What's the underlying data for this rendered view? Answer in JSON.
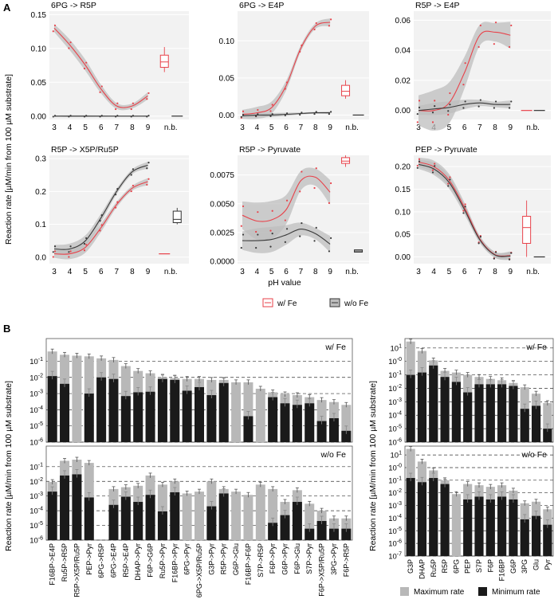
{
  "figure": {
    "panel_a_label": "A",
    "panel_b_label": "B",
    "ylabel_a": "Reaction rate [µM/min from 100 µM substrate]",
    "xlabel_a": "pH value",
    "ylabel_b": "Reaction rate [µM/min from 100 µM substrate]",
    "legend_a": [
      {
        "label": "w/ Fe",
        "color": "#e8424a"
      },
      {
        "label": "w/o Fe",
        "color": "#555555"
      }
    ],
    "legend_b": [
      {
        "label": "Maximum rate",
        "color": "#b8b8b8"
      },
      {
        "label": "Minimum rate",
        "color": "#1a1a1a"
      }
    ],
    "colors": {
      "fe": "#e8424a",
      "nofe": "#3a3a3a",
      "ribbon": "#bdbdbd",
      "max": "#b8b8b8",
      "min": "#1a1a1a",
      "panel_bg": "#f2f2f2",
      "strip": "#d9d9d9"
    }
  },
  "chart_data": [
    {
      "type": "line",
      "title": "6PG -> R5P",
      "xlabel": "pH value",
      "x": [
        3,
        4,
        5,
        6,
        7,
        8,
        9
      ],
      "ylim": [
        -0.005,
        0.155
      ],
      "yticks": [
        0.0,
        0.05,
        0.1,
        0.15
      ],
      "ytick_labels": [
        "0.00",
        "0.05",
        "0.10",
        "0.15"
      ],
      "nb_label": "n.b.",
      "series": [
        {
          "name": "w/ Fe",
          "values": [
            0.13,
            0.105,
            0.075,
            0.04,
            0.015,
            0.015,
            0.03
          ],
          "band": 0.006
        },
        {
          "name": "w/o Fe",
          "values": [
            0.0,
            0.0,
            0.0,
            0.0,
            0.0,
            0.0,
            0.0
          ],
          "band": 0.001
        }
      ],
      "nb_box": [
        {
          "series": "w/ Fe",
          "min": 0.065,
          "q1": 0.072,
          "median": 0.08,
          "q3": 0.09,
          "max": 0.102
        },
        {
          "series": "w/o Fe",
          "min": 0.0,
          "q1": 0.0,
          "median": 0.0,
          "q3": 0.0,
          "max": 0.0
        }
      ]
    },
    {
      "type": "line",
      "title": "6PG -> E4P",
      "xlabel": "pH value",
      "x": [
        3,
        4,
        5,
        6,
        7,
        8,
        9
      ],
      "ylim": [
        -0.006,
        0.14
      ],
      "yticks": [
        0.0,
        0.05,
        0.1
      ],
      "ytick_labels": [
        "0.00",
        "0.05",
        "0.10"
      ],
      "nb_label": "n.b.",
      "series": [
        {
          "name": "w/ Fe",
          "values": [
            0.001,
            0.003,
            0.01,
            0.04,
            0.09,
            0.12,
            0.125
          ],
          "band": 0.006
        },
        {
          "name": "w/o Fe",
          "values": [
            -0.001,
            0.0,
            0.0,
            0.001,
            0.002,
            0.003,
            0.003
          ],
          "band": 0.002
        }
      ],
      "nb_box": [
        {
          "series": "w/ Fe",
          "min": 0.022,
          "q1": 0.026,
          "median": 0.032,
          "q3": 0.04,
          "max": 0.047
        },
        {
          "series": "w/o Fe",
          "min": 0.0,
          "q1": 0.0,
          "median": 0.0,
          "q3": 0.0,
          "max": 0.0
        }
      ]
    },
    {
      "type": "line",
      "title": "R5P -> E4P",
      "xlabel": "pH value",
      "x": [
        3,
        4,
        5,
        6,
        7,
        8,
        9
      ],
      "ylim": [
        -0.006,
        0.066
      ],
      "yticks": [
        0.0,
        0.02,
        0.04,
        0.06
      ],
      "ytick_labels": [
        "0.00",
        "0.02",
        "0.04",
        "0.06"
      ],
      "nb_label": "n.b.",
      "series": [
        {
          "name": "w/ Fe",
          "values": [
            0.0,
            0.0,
            0.005,
            0.025,
            0.05,
            0.052,
            0.05
          ],
          "band": 0.01
        },
        {
          "name": "w/o Fe",
          "values": [
            0.0,
            0.001,
            0.002,
            0.004,
            0.005,
            0.004,
            0.004
          ],
          "band": 0.003
        }
      ],
      "nb_box": [
        {
          "series": "w/ Fe",
          "min": 0.0,
          "q1": 0.0,
          "median": 0.0,
          "q3": 0.0,
          "max": 0.0
        },
        {
          "series": "w/o Fe",
          "min": 0.0,
          "q1": 0.0,
          "median": 0.0,
          "q3": 0.0,
          "max": 0.0
        }
      ]
    },
    {
      "type": "line",
      "title": "R5P -> X5P/Ru5P",
      "xlabel": "pH value",
      "x": [
        3,
        4,
        5,
        6,
        7,
        8,
        9
      ],
      "ylim": [
        -0.02,
        0.31
      ],
      "yticks": [
        0.0,
        0.1,
        0.2,
        0.3
      ],
      "ytick_labels": [
        "0.0",
        "0.1",
        "0.2",
        "0.3"
      ],
      "nb_label": "n.b.",
      "series": [
        {
          "name": "w/ Fe",
          "values": [
            0.01,
            0.01,
            0.03,
            0.09,
            0.16,
            0.21,
            0.23
          ],
          "band": 0.012
        },
        {
          "name": "w/o Fe",
          "values": [
            0.025,
            0.025,
            0.05,
            0.12,
            0.2,
            0.26,
            0.28
          ],
          "band": 0.012
        }
      ],
      "nb_box": [
        {
          "series": "w/ Fe",
          "min": 0.01,
          "q1": 0.01,
          "median": 0.01,
          "q3": 0.01,
          "max": 0.01
        },
        {
          "series": "w/o Fe",
          "min": 0.1,
          "q1": 0.105,
          "median": 0.115,
          "q3": 0.14,
          "max": 0.15
        }
      ]
    },
    {
      "type": "line",
      "title": "R5P -> Pyruvate",
      "xlabel": "pH value",
      "x": [
        3,
        4,
        5,
        6,
        7,
        8,
        9
      ],
      "ylim": [
        -0.0002,
        0.0092
      ],
      "yticks": [
        0.0,
        0.0025,
        0.005,
        0.0075
      ],
      "ytick_labels": [
        "0.0000",
        "0.0025",
        "0.0050",
        "0.0075"
      ],
      "nb_label": "n.b.",
      "series": [
        {
          "name": "w/ Fe",
          "values": [
            0.004,
            0.0035,
            0.0036,
            0.0045,
            0.007,
            0.0073,
            0.006
          ],
          "band": 0.0012
        },
        {
          "name": "w/o Fe",
          "values": [
            0.0018,
            0.0018,
            0.0019,
            0.0023,
            0.0028,
            0.0024,
            0.0015
          ],
          "band": 0.0008
        }
      ],
      "nb_box": [
        {
          "series": "w/ Fe",
          "min": 0.0082,
          "q1": 0.0085,
          "median": 0.0087,
          "q3": 0.009,
          "max": 0.0092
        },
        {
          "series": "w/o Fe",
          "min": 0.0008,
          "q1": 0.0008,
          "median": 0.0009,
          "q3": 0.001,
          "max": 0.001
        }
      ]
    },
    {
      "type": "line",
      "title": "PEP -> Pyruvate",
      "xlabel": "pH value",
      "x": [
        3,
        4,
        5,
        6,
        7,
        8,
        9
      ],
      "ylim": [
        -0.015,
        0.225
      ],
      "yticks": [
        0.0,
        0.05,
        0.1,
        0.15,
        0.2
      ],
      "ytick_labels": [
        "0.00",
        "0.05",
        "0.10",
        "0.15",
        "0.20"
      ],
      "nb_label": "n.b.",
      "series": [
        {
          "name": "w/ Fe",
          "values": [
            0.21,
            0.2,
            0.17,
            0.11,
            0.04,
            0.005,
            0.003
          ],
          "band": 0.01
        },
        {
          "name": "w/o Fe",
          "values": [
            0.205,
            0.195,
            0.165,
            0.105,
            0.038,
            0.004,
            0.002
          ],
          "band": 0.01
        }
      ],
      "nb_box": [
        {
          "series": "w/ Fe",
          "min": 0.0,
          "q1": 0.03,
          "median": 0.065,
          "q3": 0.09,
          "max": 0.125
        },
        {
          "series": "w/o Fe",
          "min": 0.0,
          "q1": 0.0,
          "median": 0.0,
          "q3": 0.0,
          "max": 0.0
        }
      ]
    },
    {
      "type": "bar",
      "title": "w/ Fe",
      "scale": "log",
      "ylim_exp": [
        -6,
        0.4
      ],
      "yticks_exp": [
        -6,
        -5,
        -4,
        -3,
        -2,
        -1
      ],
      "ytick_labels": [
        "10^-6",
        "10^-5",
        "10^-4",
        "10^-3",
        "10^-2",
        "10^-1"
      ],
      "categories": [
        "F16BP->E4P",
        "Ru5P->R5P",
        "R5P->X5P/Ru5P",
        "PEP->Pyr",
        "6PG->R5P",
        "6PG->E4P",
        "R5P->E4P",
        "DHAP->Pyr",
        "F6P->G6P",
        "Ru5P->Pyr",
        "F16BP->Pyr",
        "6PG->Pyr",
        "6PG->X5P/Ru5P",
        "G3P->Pyr",
        "R5P->Pyr",
        "G6P->Glu",
        "F16BP->F6P",
        "S7P->R5P",
        "F6P->Pyr",
        "G6P->Pyr",
        "F6P->Glu",
        "S7P->Pyr",
        "F6P->X5P/Ru5P",
        "3PG->Pyr",
        "F6P->R5P"
      ],
      "series": [
        {
          "name": "Maximum rate",
          "values": [
            0.4,
            0.25,
            0.22,
            0.2,
            0.15,
            0.12,
            0.05,
            0.025,
            0.018,
            0.01,
            0.009,
            0.008,
            0.008,
            0.007,
            0.007,
            0.005,
            0.005,
            0.002,
            0.0012,
            0.0009,
            0.0008,
            0.0006,
            0.0004,
            0.0003,
            0.0002
          ]
        },
        {
          "name": "Minimum rate",
          "values": [
            0.012,
            0.004,
            null,
            0.001,
            0.01,
            0.008,
            0.0007,
            0.0012,
            0.0013,
            0.008,
            0.007,
            0.0015,
            0.0025,
            0.0008,
            0.0045,
            null,
            4e-05,
            null,
            0.0006,
            0.00025,
            0.0002,
            0.00025,
            2e-05,
            3e-05,
            5e-06
          ]
        }
      ]
    },
    {
      "type": "bar",
      "title": "w/o Fe",
      "scale": "log",
      "ylim_exp": [
        -6,
        0.4
      ],
      "yticks_exp": [
        -6,
        -5,
        -4,
        -3,
        -2,
        -1
      ],
      "ytick_labels": [
        "10^-6",
        "10^-5",
        "10^-4",
        "10^-3",
        "10^-2",
        "10^-1"
      ],
      "categories": [
        "F16BP->E4P",
        "Ru5P->R5P",
        "R5P->X5P/Ru5P",
        "PEP->Pyr",
        "6PG->R5P",
        "6PG->E4P",
        "R5P->E4P",
        "DHAP->Pyr",
        "F6P->G6P",
        "Ru5P->Pyr",
        "F16BP->Pyr",
        "6PG->Pyr",
        "6PG->X5P/Ru5P",
        "G3P->Pyr",
        "R5P->Pyr",
        "G6P->Glu",
        "F16BP->F6P",
        "S7P->R5P",
        "F6P->Pyr",
        "G6P->Pyr",
        "F6P->Glu",
        "S7P->Pyr",
        "F6P->X5P/Ru5P",
        "3PG->Pyr",
        "F6P->R5P"
      ],
      "series": [
        {
          "name": "Maximum rate",
          "values": [
            0.009,
            0.25,
            0.3,
            0.18,
            null,
            0.003,
            0.004,
            0.005,
            0.025,
            0.006,
            0.01,
            0.0015,
            0.002,
            0.01,
            0.003,
            0.002,
            0.0012,
            0.006,
            0.003,
            0.0004,
            0.0025,
            0.0003,
            0.0001,
            3e-05,
            3e-05
          ]
        },
        {
          "name": "Minimum rate",
          "values": [
            0.002,
            0.025,
            0.03,
            0.0008,
            null,
            0.00025,
            0.0009,
            0.0004,
            0.0012,
            9e-05,
            0.0018,
            null,
            null,
            0.0002,
            0.0015,
            null,
            null,
            null,
            1.5e-05,
            5e-05,
            0.0004,
            6e-06,
            2e-05,
            6e-06,
            6e-06
          ]
        }
      ]
    },
    {
      "type": "bar",
      "title": "w/ Fe",
      "scale": "log",
      "ylim_exp": [
        -6,
        1.7
      ],
      "yticks_exp": [
        -6,
        -5,
        -4,
        -3,
        -2,
        -1,
        0,
        1
      ],
      "ytick_labels": [
        "10^-6",
        "10^-5",
        "10^-4",
        "10^-3",
        "10^-2",
        "10^-1",
        "10^-0",
        "10^1"
      ],
      "categories": [
        "G3P",
        "DHAP",
        "Ru5P",
        "R5P",
        "6PG",
        "PEP",
        "S7P",
        "F6P",
        "F16BP",
        "G6P",
        "3PG",
        "Glu",
        "Pyr"
      ],
      "series": [
        {
          "name": "Maximum rate",
          "values": [
            30,
            6,
            1.2,
            0.2,
            0.15,
            0.1,
            0.07,
            0.05,
            0.04,
            0.025,
            0.012,
            0.004,
            0.0008
          ]
        },
        {
          "name": "Minimum rate",
          "values": [
            0.1,
            0.15,
            0.5,
            0.07,
            0.03,
            0.005,
            0.02,
            0.02,
            0.02,
            0.015,
            0.0003,
            0.0005,
            1e-05
          ]
        }
      ]
    },
    {
      "type": "bar",
      "title": "w/o Fe",
      "scale": "log",
      "ylim_exp": [
        -7,
        1.7
      ],
      "yticks_exp": [
        -7,
        -6,
        -5,
        -4,
        -3,
        -2,
        -1,
        0,
        1
      ],
      "ytick_labels": [
        "10^-7",
        "10^-6",
        "10^-5",
        "10^-4",
        "10^-3",
        "10^-2",
        "10^-1",
        "10^-0",
        "10^1"
      ],
      "categories": [
        "G3P",
        "DHAP",
        "Ru5P",
        "R5P",
        "6PG",
        "PEP",
        "S7P",
        "F6P",
        "F16BP",
        "G6P",
        "3PG",
        "Glu",
        "Pyr"
      ],
      "series": [
        {
          "name": "Maximum rate",
          "values": [
            30,
            3,
            0.6,
            0.1,
            0.008,
            0.05,
            0.04,
            0.03,
            0.04,
            0.015,
            0.0015,
            0.002,
            0.0005
          ]
        },
        {
          "name": "Minimum rate",
          "values": [
            0.15,
            0.07,
            0.15,
            0.05,
            null,
            0.003,
            0.005,
            0.003,
            0.005,
            0.003,
            8e-05,
            0.00015,
            3e-05
          ]
        }
      ]
    }
  ]
}
